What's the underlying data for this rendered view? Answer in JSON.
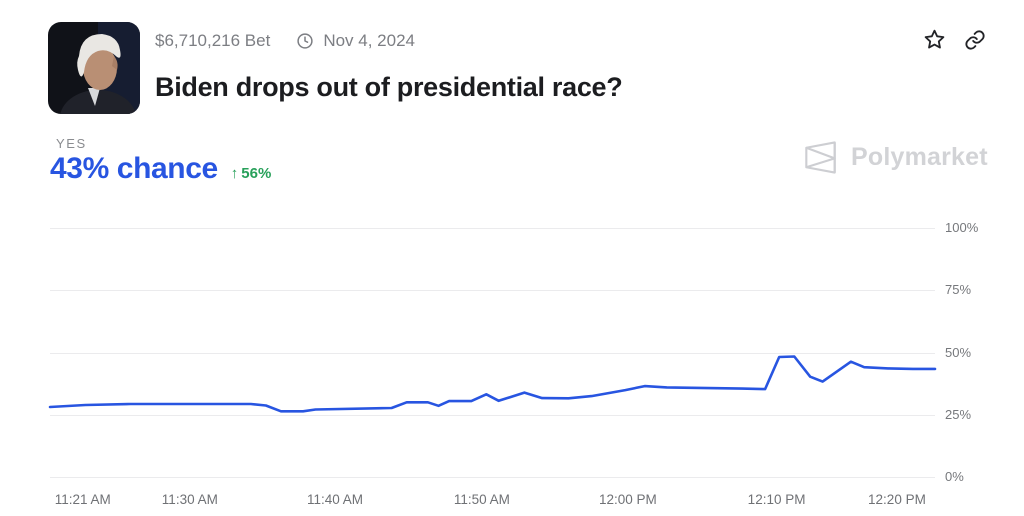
{
  "header": {
    "bet_amount": "$6,710,216 Bet",
    "date": "Nov 4, 2024",
    "title": "Biden drops out of presidential race?"
  },
  "outcome": {
    "label": "YES",
    "chance": "43% chance",
    "change_arrow": "↑",
    "change_value": "56%"
  },
  "watermark": {
    "brand": "Polymarket"
  },
  "icons": {
    "clock": "clock-icon",
    "star": "star-icon",
    "link": "link-icon",
    "logo": "polymarket-logo-icon"
  },
  "colors": {
    "accent_blue": "#2855e1",
    "positive_green": "#28a05a",
    "grid": "#ebebed",
    "axis_text": "#76787c",
    "muted_text": "#7c7e83",
    "watermark": "#d2d3d6"
  },
  "chart_data": {
    "type": "line",
    "title": "Biden drops out of presidential race? — Yes chance over time",
    "xlabel": "",
    "ylabel": "",
    "ylim": [
      0,
      100
    ],
    "grid": "horizontal",
    "legend": "none",
    "y_ticks": [
      {
        "label": "100%",
        "value": 100
      },
      {
        "label": "75%",
        "value": 75
      },
      {
        "label": "50%",
        "value": 50
      },
      {
        "label": "25%",
        "value": 25
      },
      {
        "label": "0%",
        "value": 0
      }
    ],
    "x_ticks": [
      {
        "label": "11:21 AM",
        "pos": 0.037
      },
      {
        "label": "11:30 AM",
        "pos": 0.158
      },
      {
        "label": "11:40 AM",
        "pos": 0.322
      },
      {
        "label": "11:50 AM",
        "pos": 0.488
      },
      {
        "label": "12:00 PM",
        "pos": 0.653
      },
      {
        "label": "12:10 PM",
        "pos": 0.821
      },
      {
        "label": "12:20 PM",
        "pos": 0.957
      }
    ],
    "series": [
      {
        "name": "Yes",
        "color": "#2855e1",
        "points": [
          [
            0.0,
            28.1
          ],
          [
            0.04,
            28.9
          ],
          [
            0.091,
            29.3
          ],
          [
            0.227,
            29.3
          ],
          [
            0.244,
            28.7
          ],
          [
            0.261,
            26.4
          ],
          [
            0.286,
            26.4
          ],
          [
            0.3,
            27.1
          ],
          [
            0.386,
            27.7
          ],
          [
            0.403,
            30.0
          ],
          [
            0.427,
            30.0
          ],
          [
            0.439,
            28.6
          ],
          [
            0.451,
            30.5
          ],
          [
            0.476,
            30.5
          ],
          [
            0.493,
            33.2
          ],
          [
            0.507,
            30.6
          ],
          [
            0.536,
            33.9
          ],
          [
            0.556,
            31.7
          ],
          [
            0.586,
            31.6
          ],
          [
            0.612,
            32.5
          ],
          [
            0.65,
            34.9
          ],
          [
            0.672,
            36.5
          ],
          [
            0.697,
            36.0
          ],
          [
            0.782,
            35.5
          ],
          [
            0.808,
            35.3
          ],
          [
            0.824,
            48.2
          ],
          [
            0.841,
            48.4
          ],
          [
            0.859,
            40.3
          ],
          [
            0.873,
            38.3
          ],
          [
            0.905,
            46.3
          ],
          [
            0.92,
            44.1
          ],
          [
            0.947,
            43.6
          ],
          [
            0.975,
            43.4
          ],
          [
            1.0,
            43.4
          ]
        ]
      }
    ]
  }
}
